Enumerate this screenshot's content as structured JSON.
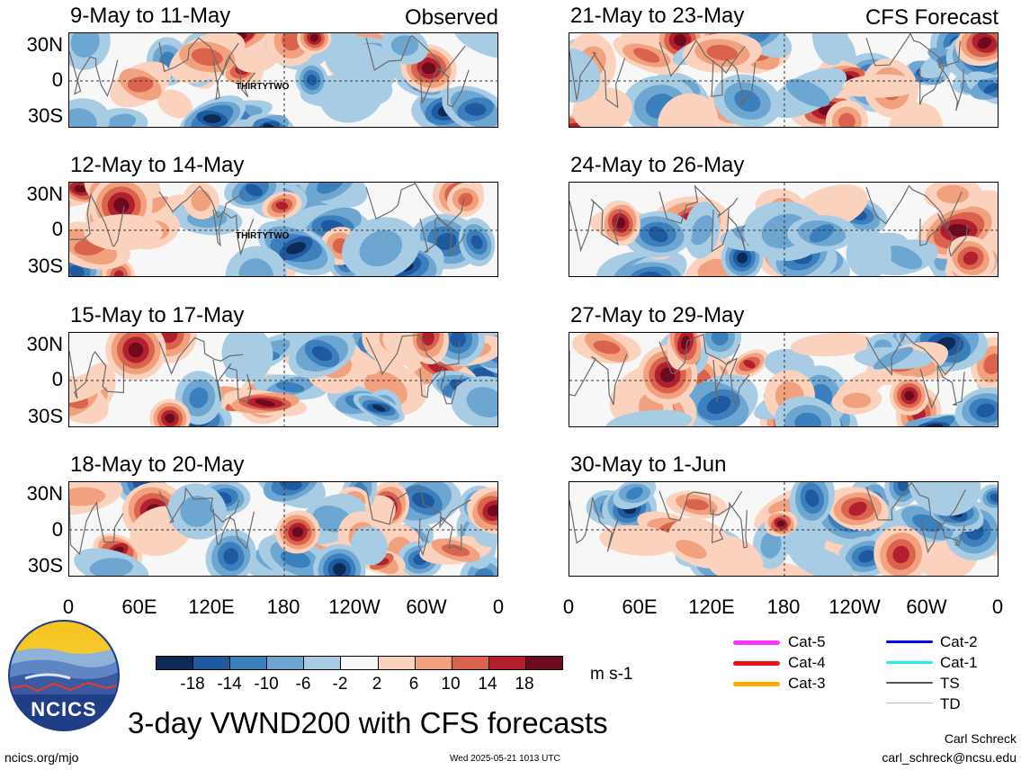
{
  "panels": [
    {
      "id": "p1",
      "title": "9-May to 11-May",
      "corner_label": "Observed",
      "storm_label": "THIRTYTWO"
    },
    {
      "id": "p2",
      "title": "12-May to 14-May",
      "corner_label": "",
      "storm_label": "THIRTYTWO"
    },
    {
      "id": "p3",
      "title": "15-May to 17-May",
      "corner_label": "",
      "storm_label": ""
    },
    {
      "id": "p4",
      "title": "18-May to 20-May",
      "corner_label": "",
      "storm_label": ""
    },
    {
      "id": "p5",
      "title": "21-May to 23-May",
      "corner_label": "CFS Forecast",
      "storm_label": ""
    },
    {
      "id": "p6",
      "title": "24-May to 26-May",
      "corner_label": "",
      "storm_label": ""
    },
    {
      "id": "p7",
      "title": "27-May to 29-May",
      "corner_label": "",
      "storm_label": ""
    },
    {
      "id": "p8",
      "title": "30-May to 1-Jun",
      "corner_label": "",
      "storm_label": ""
    }
  ],
  "lat_labels": [
    "30N",
    "0",
    "30S"
  ],
  "lon_labels": [
    "0",
    "60E",
    "120E",
    "180",
    "120W",
    "60W",
    "0"
  ],
  "colorbar": {
    "ticks": [
      "-18",
      "-14",
      "-10",
      "-6",
      "-2",
      "2",
      "6",
      "10",
      "14",
      "18"
    ],
    "colors": [
      "#0d2a55",
      "#1f5aa0",
      "#3c7fbd",
      "#6ea6d2",
      "#a8cce4",
      "#f7f7f7",
      "#fbd2bd",
      "#f2a17f",
      "#d9634c",
      "#b21f2e",
      "#6d0a1e"
    ],
    "units": "m s-1"
  },
  "storm_legend": [
    {
      "label": "Cat-5",
      "color": "#ff33ff"
    },
    {
      "label": "Cat-4",
      "color": "#ee1111"
    },
    {
      "label": "Cat-3",
      "color": "#ffaa00"
    },
    {
      "label": "Cat-2",
      "color": "#0000ee"
    },
    {
      "label": "Cat-1",
      "color": "#22eeee"
    },
    {
      "label": "TS",
      "color": "#555555"
    },
    {
      "label": "TD",
      "color": "#bbbbbb"
    }
  ],
  "logo": {
    "text": "NCICS"
  },
  "main_title": "3-day VWND200 with CFS forecasts",
  "author": "Carl Schreck",
  "email": "carl_schreck@ncsu.edu",
  "website": "ncics.org/mjo",
  "timestamp": "Wed 2025-05-21 1013 UTC"
}
